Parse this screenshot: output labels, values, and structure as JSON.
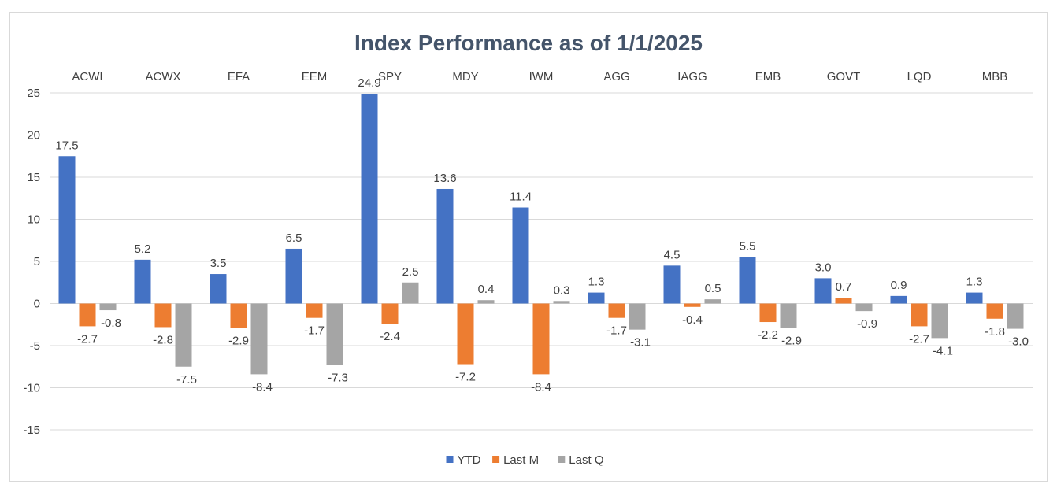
{
  "chart_data": {
    "type": "bar",
    "title": "Index Performance as of 1/1/2025",
    "xlabel": "",
    "ylabel": "",
    "categories": [
      "ACWI",
      "ACWX",
      "EFA",
      "EEM",
      "SPY",
      "MDY",
      "IWM",
      "AGG",
      "IAGG",
      "EMB",
      "GOVT",
      "LQD",
      "MBB"
    ],
    "series": [
      {
        "name": "YTD",
        "color": "#4472c4",
        "values": [
          17.5,
          5.2,
          3.5,
          6.5,
          24.9,
          13.6,
          11.4,
          1.3,
          4.5,
          5.5,
          3.0,
          0.9,
          1.3
        ]
      },
      {
        "name": "Last M",
        "color": "#ed7d31",
        "values": [
          -2.7,
          -2.8,
          -2.9,
          -1.7,
          -2.4,
          -7.2,
          -8.4,
          -1.7,
          -0.4,
          -2.2,
          0.7,
          -2.7,
          -1.8
        ]
      },
      {
        "name": "Last Q",
        "color": "#a5a5a5",
        "values": [
          -0.8,
          -7.5,
          -8.4,
          -7.3,
          2.5,
          0.4,
          0.3,
          -3.1,
          0.5,
          -2.9,
          -0.9,
          -4.1,
          -3.0
        ]
      }
    ],
    "ylim": [
      -15,
      25
    ],
    "yticks": [
      25,
      20,
      15,
      10,
      5,
      0,
      -5,
      -10,
      -15
    ],
    "grid": true,
    "legend": "bottom",
    "category_labels_position": "top"
  }
}
